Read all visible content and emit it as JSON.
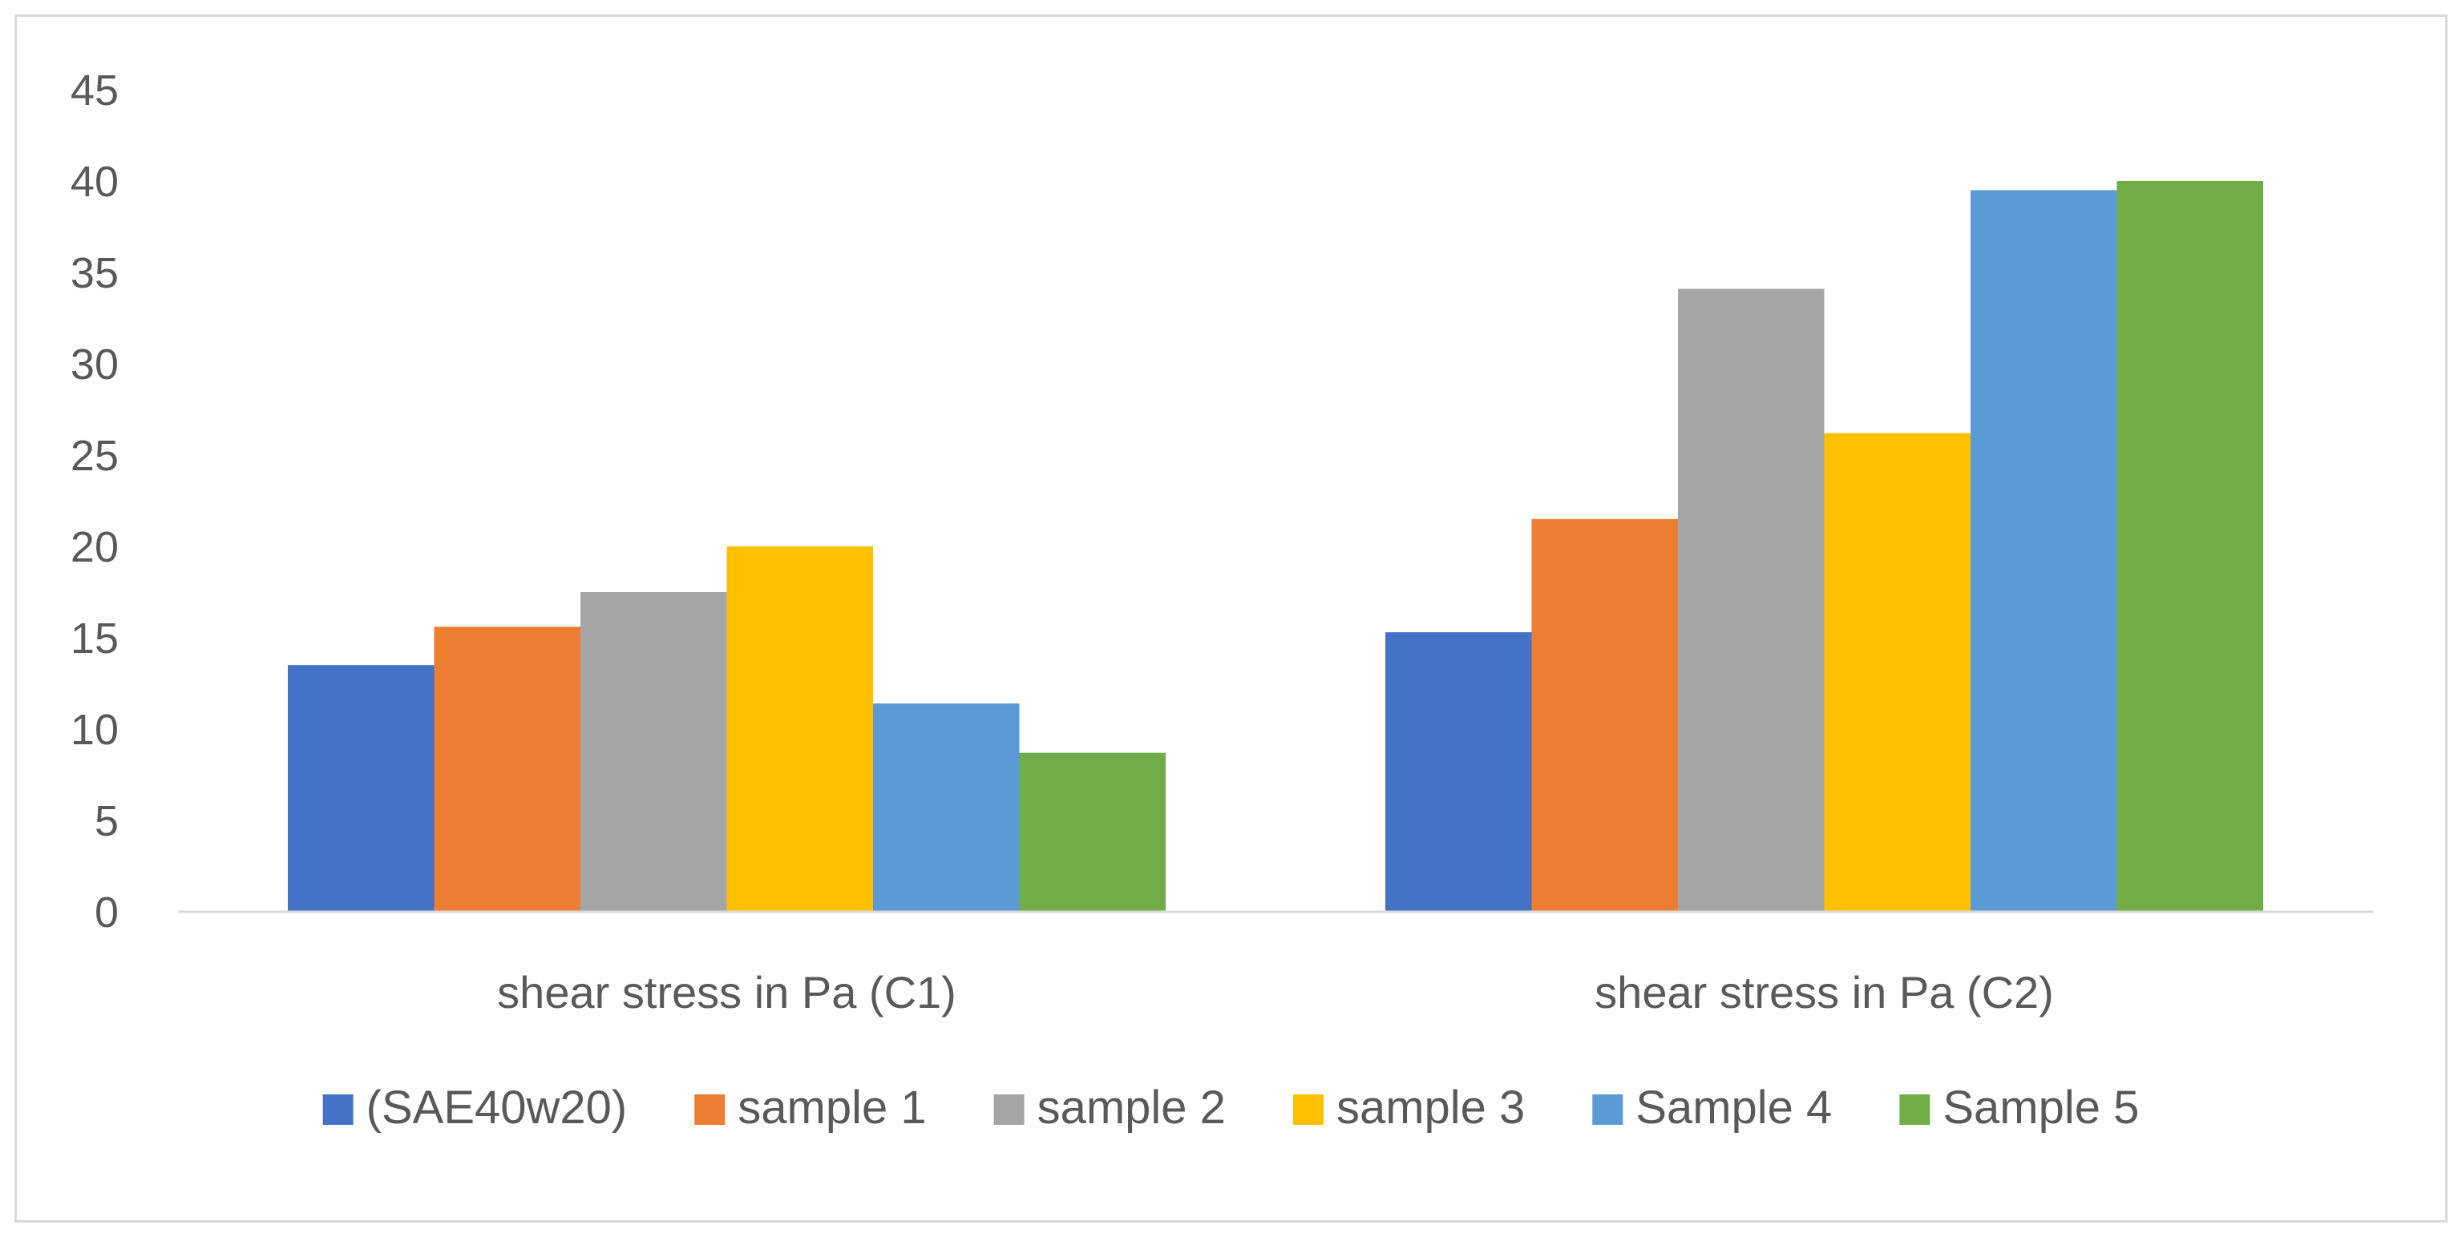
{
  "chart_data": {
    "type": "bar",
    "title": "",
    "xlabel": "",
    "ylabel": "",
    "ylim": [
      0,
      45
    ],
    "yticks": [
      0,
      5,
      10,
      15,
      20,
      25,
      30,
      35,
      40,
      45
    ],
    "grid": false,
    "legend_position": "bottom",
    "categories": [
      "shear stress in Pa (C1)",
      "shear stress in Pa (C2)"
    ],
    "series": [
      {
        "name": "(SAE40w20)",
        "color": "#4472c4",
        "values": [
          13.5,
          15.3
        ]
      },
      {
        "name": "sample 1",
        "color": "#ed7d31",
        "values": [
          15.6,
          21.5
        ]
      },
      {
        "name": "sample 2",
        "color": "#a5a5a5",
        "values": [
          17.5,
          34.1
        ]
      },
      {
        "name": "sample 3",
        "color": "#ffc000",
        "values": [
          20.0,
          26.2
        ]
      },
      {
        "name": "Sample 4",
        "color": "#5b9bd5",
        "values": [
          11.4,
          39.5
        ]
      },
      {
        "name": "Sample 5",
        "color": "#70ad47",
        "values": [
          8.7,
          40.0
        ]
      }
    ]
  }
}
